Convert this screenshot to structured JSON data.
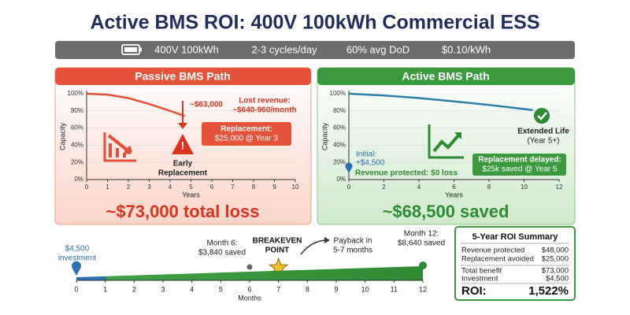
{
  "title": "Active BMS ROI: 400V 100kWh Commercial ESS",
  "specs": [
    "400V 100kWh",
    "2-3 cycles/day",
    "60% avg DoD",
    "$0.10/kWh"
  ],
  "panels": [
    {
      "header": "Passive BMS Path",
      "result": "~$73,000 total loss",
      "annotations": {
        "loss": "~$63,000",
        "lost_revenue": [
          "Lost revenue:",
          "~$640-960/month"
        ],
        "replacement": [
          "Replacement:",
          "$25,000 @ Year 3"
        ],
        "early": [
          "Early",
          "Replacement"
        ]
      }
    },
    {
      "header": "Active BMS Path",
      "result": "~$68,500 saved",
      "annotations": {
        "extended": [
          "Extended Life",
          "(Year 5+)"
        ],
        "initial": [
          "Initial:",
          "+$4,500"
        ],
        "protected": "Revenue protected: $0 loss",
        "delayed": [
          "Replacement delayed:",
          "$25k saved @ Year 5"
        ]
      }
    }
  ],
  "chart_data": [
    {
      "type": "line",
      "xlabel": "Years",
      "ylabel": "Capacity",
      "color": "#e0503a",
      "grid": true,
      "x": [
        0,
        1,
        2,
        3,
        4,
        4.7
      ],
      "values": [
        100,
        99,
        95,
        88,
        80,
        74
      ],
      "xlim": [
        0,
        10
      ],
      "xticks": [
        0,
        1,
        2,
        3,
        4,
        5,
        6,
        7,
        8,
        9,
        10
      ],
      "ylim": [
        0,
        100
      ],
      "yticks": [
        {
          "value": 0,
          "label": "0%"
        },
        {
          "value": 20,
          "label": "20%"
        },
        {
          "value": 40,
          "label": "40%"
        },
        {
          "value": 60,
          "label": "60%"
        },
        {
          "value": 80,
          "label": "80%"
        },
        {
          "value": 100,
          "label": "100%"
        }
      ]
    },
    {
      "type": "line",
      "xlabel": "Years",
      "ylabel": "Capacity",
      "color": "#2e7fa8",
      "grid": true,
      "x": [
        0,
        2,
        4,
        6,
        8,
        10.5
      ],
      "values": [
        100,
        98,
        95,
        91,
        87,
        81
      ],
      "xlim": [
        0,
        12
      ],
      "xticks": [
        0,
        2,
        4,
        6,
        8,
        10,
        12
      ],
      "ylim": [
        0,
        100
      ],
      "yticks": [
        {
          "value": 0,
          "label": "0%"
        },
        {
          "value": 20,
          "label": "20%"
        },
        {
          "value": 40,
          "label": "40%"
        },
        {
          "value": 60,
          "label": "60%"
        },
        {
          "value": 80,
          "label": "80%"
        },
        {
          "value": 100,
          "label": "100%"
        }
      ]
    },
    {
      "type": "timeline",
      "xlabel": "Months",
      "xlim": [
        0,
        12
      ],
      "xticks": [
        0,
        1,
        2,
        3,
        4,
        5,
        6,
        7,
        8,
        9,
        10,
        11,
        12
      ],
      "milestones": [
        {
          "month": 0,
          "label": [
            "$4,500",
            "investment"
          ],
          "color": "#2e6fb0"
        },
        {
          "month": 6,
          "label": [
            "Month 6:",
            "$3,840 saved"
          ],
          "color": "#666666"
        },
        {
          "month": 7,
          "label": [
            "BREAKEVEN",
            "POINT"
          ],
          "color": "#f2c12e"
        },
        {
          "month": 12,
          "label": [
            "Month 12:",
            "$8,640 saved"
          ],
          "color": "#2f8a34"
        }
      ],
      "annotation": [
        "Payback in",
        "5-7 months"
      ]
    }
  ],
  "summary": {
    "title": "5-Year ROI Summary",
    "rows": [
      [
        "Revenue protected",
        "$48,000"
      ],
      [
        "Replacement avoided",
        "$25,000"
      ],
      [
        "Total benefit",
        "$73,000"
      ],
      [
        "Investment",
        "$4,500"
      ]
    ],
    "roi_label": "ROI:",
    "roi": "1,522%"
  }
}
